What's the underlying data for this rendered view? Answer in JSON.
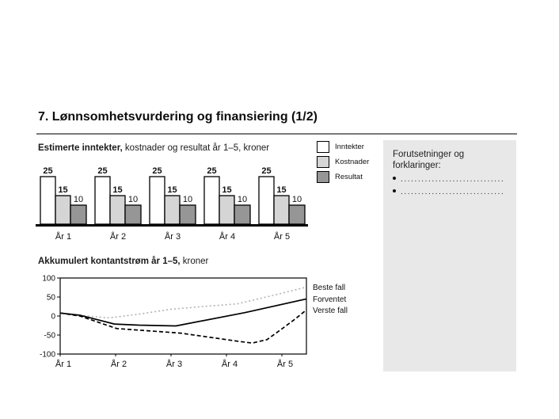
{
  "slide": {
    "title": "7. Lønnsomhetsvurdering og finansiering (1/2)"
  },
  "bar_section": {
    "heading_bold": "Estimerte inntekter,",
    "heading_rest": " kostnader og resultat år 1–5, kroner"
  },
  "line_section": {
    "heading_bold": "Akkumulert kontantstrøm år 1–5,",
    "heading_rest": " kroner"
  },
  "legend": {
    "items": [
      {
        "label": "Inntekter",
        "color": "#ffffff"
      },
      {
        "label": "Kostnader",
        "color": "#d5d5d5"
      },
      {
        "label": "Resultat",
        "color": "#969696"
      }
    ]
  },
  "side_panel": {
    "bg": "#e8e8e8",
    "heading": "Forutsetninger og forklaringer:",
    "bullets": [
      "..............................",
      ".............................."
    ]
  },
  "chart_data": [
    {
      "type": "bar",
      "title": "Estimerte inntekter, kostnader og resultat år 1–5, kroner",
      "categories": [
        "År 1",
        "År 2",
        "År 3",
        "År 4",
        "År 5"
      ],
      "series": [
        {
          "name": "Inntekter",
          "values": [
            25,
            25,
            25,
            25,
            25
          ],
          "fill": "#ffffff",
          "label_bold": true
        },
        {
          "name": "Kostnader",
          "values": [
            15,
            15,
            15,
            15,
            15
          ],
          "fill": "#d5d5d5",
          "label_bold": true
        },
        {
          "name": "Resultat",
          "values": [
            10,
            10,
            10,
            10,
            10
          ],
          "fill": "#969696",
          "label_bold": false
        }
      ],
      "data_labels": true,
      "baseline_color": "#000000",
      "legend_position": "right"
    },
    {
      "type": "line",
      "title": "Akkumulert kontantstrøm år 1–5, kroner",
      "categories": [
        "År 1",
        "År 2",
        "År 3",
        "År 4",
        "År 5"
      ],
      "ylim": [
        -100,
        100
      ],
      "yticks": [
        100,
        50,
        0,
        -50,
        -100
      ],
      "grid": false,
      "legend_position": "right",
      "series": [
        {
          "name": "Beste fall",
          "style": "dotted",
          "color": "#b2b2b2",
          "points": [
            [
              0,
              8
            ],
            [
              0.07,
              2
            ],
            [
              0.2,
              -5
            ],
            [
              0.32,
              5
            ],
            [
              0.45,
              18
            ],
            [
              0.6,
              26
            ],
            [
              0.72,
              32
            ],
            [
              0.85,
              52
            ],
            [
              1,
              76
            ]
          ]
        },
        {
          "name": "Forventet",
          "style": "solid",
          "color": "#000000",
          "points": [
            [
              0,
              8
            ],
            [
              0.08,
              2
            ],
            [
              0.22,
              -21
            ],
            [
              0.32,
              -24
            ],
            [
              0.47,
              -26
            ],
            [
              0.75,
              9
            ],
            [
              1,
              45
            ]
          ]
        },
        {
          "name": "Verste fall",
          "style": "dashed",
          "color": "#000000",
          "points": [
            [
              0,
              8
            ],
            [
              0.08,
              0
            ],
            [
              0.23,
              -33
            ],
            [
              0.49,
              -45
            ],
            [
              0.63,
              -58
            ],
            [
              0.73,
              -67
            ],
            [
              0.78,
              -71
            ],
            [
              0.84,
              -62
            ],
            [
              0.9,
              -34
            ],
            [
              0.95,
              -10
            ],
            [
              1,
              16
            ]
          ]
        }
      ]
    }
  ]
}
